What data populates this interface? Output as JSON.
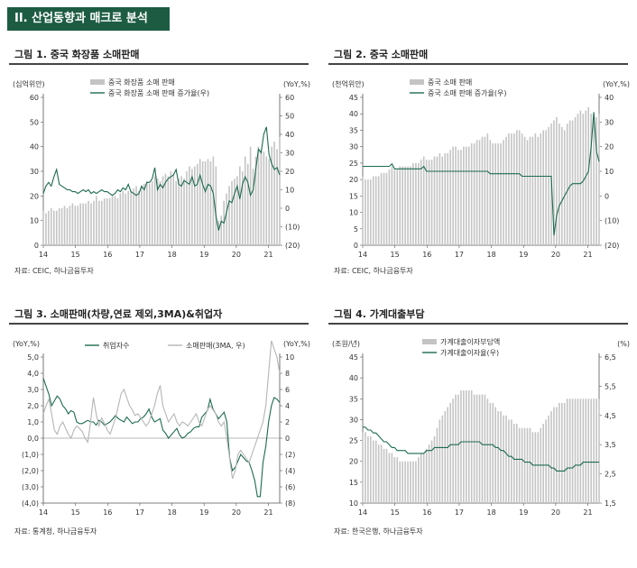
{
  "header": {
    "section_title": "II. 산업동향과 매크로 분석"
  },
  "charts": [
    {
      "figure_title": "그림 1. 중국 화장품 소매판매",
      "source": "자료: CEIC, 하나금융투자",
      "left_unit": "(십억위안)",
      "right_unit": "(YoY,%)",
      "chart_data": {
        "type": "bar",
        "x_ticks": [
          "14",
          "15",
          "16",
          "17",
          "18",
          "19",
          "20",
          "21"
        ],
        "ylim": [
          0,
          60
        ],
        "y_ticks": [
          "0",
          "10",
          "20",
          "30",
          "40",
          "50",
          "60"
        ],
        "y2lim": [
          -20,
          60
        ],
        "y2_ticks": [
          "(20)",
          "(10)",
          "0",
          "10",
          "20",
          "30",
          "40",
          "50",
          "60"
        ],
        "start": 2014.0,
        "end": 2021.35,
        "series": [
          {
            "name": "중국 화장품 소매 판매",
            "type": "bar",
            "axis": "left",
            "values": [
              14,
              13,
              14,
              15,
              14,
              14,
              15,
              15,
              16,
              15,
              16,
              17,
              16,
              16,
              17,
              17,
              17,
              18,
              17,
              18,
              20,
              18,
              18,
              19,
              19,
              19,
              20,
              20,
              19,
              21,
              22,
              21,
              22,
              22,
              23,
              24,
              22,
              24,
              25,
              26,
              25,
              26,
              28,
              27,
              26,
              28,
              29,
              28,
              30,
              29,
              26,
              27,
              28,
              27,
              30,
              32,
              31,
              32,
              33,
              35,
              34,
              34,
              35,
              34,
              36,
              32,
              10,
              12,
              18,
              21,
              24,
              26,
              27,
              28,
              32,
              30,
              36,
              33,
              40,
              31,
              36,
              40,
              39,
              38,
              36,
              35,
              40,
              42,
              39,
              44
            ]
          },
          {
            "name": "중국 화장품 소매 판매 증가율(우)",
            "type": "line",
            "axis": "right",
            "values": [
              8,
              12,
              14,
              12,
              17,
              21,
              13,
              12,
              11,
              10,
              10,
              9,
              9,
              8,
              9,
              10,
              9,
              10,
              8,
              9,
              8,
              9,
              10,
              9,
              9,
              8,
              7,
              8,
              10,
              9,
              11,
              10,
              13,
              9,
              8,
              7,
              8,
              12,
              10,
              14,
              14,
              16,
              22,
              10,
              13,
              11,
              14,
              16,
              17,
              18,
              21,
              13,
              12,
              15,
              14,
              13,
              17,
              12,
              13,
              18,
              13,
              9,
              13,
              12,
              8,
              -4,
              -12,
              -7,
              -8,
              -2,
              4,
              3,
              8,
              12,
              5,
              13,
              17,
              14,
              7,
              10,
              21,
              32,
              30,
              40,
              44,
              29,
              24,
              21,
              22,
              18
            ]
          }
        ]
      }
    },
    {
      "figure_title": "그림 2. 중국 소매판매",
      "source": "자료: CEIC, 하나금융투자",
      "left_unit": "(천억위안)",
      "right_unit": "(YoY,%)",
      "chart_data": {
        "type": "bar",
        "x_ticks": [
          "14",
          "15",
          "16",
          "17",
          "18",
          "19",
          "20",
          "21"
        ],
        "ylim": [
          0,
          45
        ],
        "y_ticks": [
          "0",
          "5",
          "10",
          "15",
          "20",
          "25",
          "30",
          "35",
          "40",
          "45"
        ],
        "y2lim": [
          -20,
          40
        ],
        "y2_ticks": [
          "(20)",
          "(10)",
          "0",
          "10",
          "20",
          "30",
          "40"
        ],
        "start": 2014.0,
        "end": 2021.35,
        "series": [
          {
            "name": "중국 소매 판매",
            "type": "bar",
            "axis": "left",
            "values": [
              21,
              20,
              20,
              20,
              21,
              21,
              21,
              22,
              22,
              22,
              23,
              24,
              23,
              23,
              24,
              24,
              24,
              24,
              24,
              25,
              25,
              25,
              26,
              27,
              26,
              26,
              26,
              27,
              27,
              28,
              27,
              28,
              28,
              29,
              30,
              30,
              29,
              29,
              30,
              30,
              30,
              31,
              31,
              32,
              32,
              33,
              33,
              34,
              32,
              31,
              31,
              31,
              31,
              32,
              33,
              34,
              34,
              34,
              35,
              35,
              34,
              33,
              32,
              33,
              33,
              34,
              33,
              34,
              35,
              35,
              36,
              37,
              38,
              39,
              37,
              36,
              35,
              37,
              38,
              38,
              39,
              40,
              41,
              40,
              41,
              42,
              40,
              38,
              39,
              40
            ]
          },
          {
            "name": "중국 소매 판매 증가율(우)",
            "type": "line",
            "axis": "right",
            "values": [
              12,
              12,
              12,
              12,
              12,
              12,
              12,
              12,
              12,
              12,
              12,
              13,
              11,
              11,
              11,
              11,
              11,
              11,
              11,
              11,
              11,
              11,
              11,
              12,
              10,
              10,
              10,
              10,
              10,
              10,
              10,
              10,
              10,
              10,
              10,
              10,
              10,
              10,
              10,
              10,
              10,
              10,
              10,
              10,
              10,
              10,
              10,
              10,
              9,
              9,
              9,
              9,
              9,
              9,
              9,
              9,
              9,
              9,
              9,
              9,
              8,
              8,
              8,
              8,
              8,
              8,
              8,
              8,
              8,
              8,
              8,
              8,
              -16,
              -8,
              -4,
              -2,
              0,
              2,
              4,
              5,
              5,
              5,
              5,
              6,
              8,
              10,
              20,
              34,
              18,
              14
            ]
          }
        ]
      }
    },
    {
      "figure_title": "그림 3. 소매판매(차량,연료 제외,3MA)&취업자",
      "source": "자료: 통계청, 하나금융투자",
      "left_unit": "(YoY,%)",
      "right_unit": "(YoY,%)",
      "chart_data": {
        "type": "line",
        "x_ticks": [
          "14",
          "15",
          "16",
          "17",
          "18",
          "19",
          "20",
          "21"
        ],
        "ylim": [
          -4,
          5
        ],
        "y_ticks": [
          "(4,0)",
          "(3,0)",
          "(2,0)",
          "(1,0)",
          "0,0",
          "1,0",
          "2,0",
          "3,0",
          "4,0",
          "5,0"
        ],
        "y2lim": [
          -8,
          10
        ],
        "y2_ticks": [
          "(8)",
          "(6)",
          "(4)",
          "(2)",
          "0",
          "2",
          "4",
          "6",
          "8",
          "10"
        ],
        "start": 2014.0,
        "end": 2021.35,
        "series": [
          {
            "name": "취업자수",
            "type": "line",
            "axis": "left",
            "values": [
              3.7,
              3.2,
              2.7,
              2.0,
              2.3,
              2.6,
              2.4,
              2.0,
              1.8,
              1.5,
              1.7,
              1.6,
              1.0,
              0.9,
              0.9,
              1.0,
              1.1,
              1.0,
              1.0,
              0.8,
              1.1,
              1.0,
              0.8,
              0.9,
              1.0,
              1.2,
              1.4,
              1.2,
              1.1,
              1.0,
              1.3,
              1.1,
              0.9,
              1.0,
              1.0,
              1.2,
              1.3,
              1.5,
              1.8,
              1.3,
              1.0,
              1.1,
              1.2,
              0.5,
              0.3,
              0.0,
              0.2,
              0.4,
              0.6,
              0.2,
              0.0,
              0.1,
              0.3,
              0.4,
              0.6,
              0.7,
              0.7,
              1.3,
              1.5,
              1.7,
              2.4,
              1.8,
              1.5,
              1.2,
              1.4,
              1.6,
              1.0,
              -1.2,
              -2.0,
              -1.8,
              -1.4,
              -1.0,
              -1.2,
              -1.4,
              -1.5,
              -2.0,
              -2.6,
              -3.6,
              -3.6,
              -1.5,
              -0.5,
              1.0,
              2.0,
              2.5,
              2.4,
              2.2
            ]
          },
          {
            "name": "소매판매(3MA, 우)",
            "type": "line",
            "axis": "right",
            "values": [
              3.0,
              4.0,
              4.8,
              3.0,
              1.0,
              0.5,
              1.5,
              2.0,
              1.2,
              0.5,
              0.0,
              1.0,
              1.5,
              1.2,
              0.8,
              0.0,
              -0.5,
              2.0,
              5.0,
              3.0,
              1.5,
              2.5,
              1.8,
              1.0,
              0.5,
              1.5,
              2.5,
              4.0,
              5.5,
              6.0,
              5.0,
              4.0,
              3.5,
              2.8,
              3.0,
              2.5,
              2.0,
              1.5,
              2.0,
              3.0,
              4.0,
              5.5,
              6.5,
              4.0,
              3.0,
              2.0,
              2.5,
              3.0,
              2.0,
              1.5,
              2.0,
              1.8,
              1.5,
              2.0,
              2.5,
              3.0,
              2.0,
              1.5,
              2.5,
              3.5,
              4.0,
              3.5,
              3.0,
              2.0,
              1.5,
              2.0,
              0.0,
              -2.5,
              -5.0,
              -4.0,
              -2.0,
              -1.5,
              -2.0,
              -2.5,
              -3.0,
              -2.0,
              -1.0,
              0.0,
              1.0,
              2.0,
              4.0,
              8.0,
              12.0,
              11.0,
              10.0,
              8.0
            ]
          }
        ]
      }
    },
    {
      "figure_title": "그림 4. 가계대출부담",
      "source": "자료: 한국은행, 하나금융투자",
      "left_unit": "(조원/년)",
      "right_unit": "(%)",
      "chart_data": {
        "type": "bar",
        "x_ticks": [
          "14",
          "15",
          "16",
          "17",
          "18",
          "19",
          "20",
          "21"
        ],
        "ylim": [
          10,
          45
        ],
        "y_ticks": [
          "10",
          "15",
          "20",
          "25",
          "30",
          "35",
          "40",
          "45"
        ],
        "y2lim": [
          1.5,
          6.5
        ],
        "y2_ticks": [
          "1,5",
          "2,5",
          "3,5",
          "4,5",
          "5,5",
          "6,5"
        ],
        "start": 2014.0,
        "end": 2021.35,
        "series": [
          {
            "name": "가계대출이자부담액",
            "type": "bar",
            "axis": "left",
            "values": [
              27,
              27,
              26,
              26,
              25,
              25,
              24,
              24,
              23,
              23,
              22,
              22,
              21,
              21,
              20,
              20,
              20,
              20,
              20,
              20,
              20,
              21,
              22,
              22,
              23,
              24,
              25,
              26,
              28,
              30,
              31,
              32,
              33,
              34,
              35,
              36,
              36,
              37,
              37,
              37,
              37,
              37,
              36,
              36,
              36,
              36,
              36,
              35,
              34,
              34,
              33,
              32,
              32,
              31,
              31,
              30,
              30,
              29,
              29,
              28,
              28,
              28,
              28,
              28,
              27,
              27,
              27,
              28,
              29,
              30,
              31,
              32,
              33,
              33,
              34,
              34,
              34,
              35,
              35,
              35,
              35,
              35,
              35,
              35,
              35,
              35,
              35,
              35,
              35,
              35
            ]
          },
          {
            "name": "가계대출이자율(우)",
            "type": "line",
            "axis": "right",
            "values": [
              4.1,
              4.1,
              4.0,
              4.0,
              3.9,
              3.9,
              3.8,
              3.7,
              3.6,
              3.6,
              3.5,
              3.4,
              3.4,
              3.3,
              3.3,
              3.3,
              3.3,
              3.2,
              3.2,
              3.2,
              3.2,
              3.2,
              3.2,
              3.2,
              3.3,
              3.3,
              3.3,
              3.4,
              3.4,
              3.4,
              3.4,
              3.4,
              3.4,
              3.5,
              3.5,
              3.5,
              3.5,
              3.6,
              3.6,
              3.6,
              3.6,
              3.6,
              3.6,
              3.6,
              3.6,
              3.5,
              3.5,
              3.5,
              3.5,
              3.5,
              3.4,
              3.4,
              3.3,
              3.3,
              3.2,
              3.1,
              3.1,
              3.0,
              3.0,
              3.0,
              3.0,
              2.9,
              2.9,
              2.9,
              2.8,
              2.8,
              2.8,
              2.8,
              2.8,
              2.8,
              2.8,
              2.7,
              2.7,
              2.6,
              2.6,
              2.6,
              2.6,
              2.7,
              2.7,
              2.7,
              2.8,
              2.8,
              2.8,
              2.9,
              2.9,
              2.9,
              2.9,
              2.9,
              2.9,
              2.9
            ]
          }
        ]
      }
    }
  ]
}
